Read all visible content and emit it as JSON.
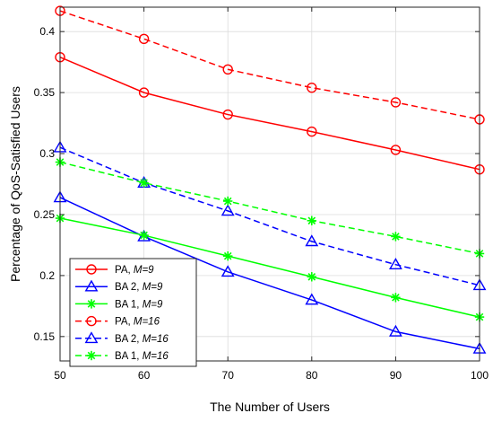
{
  "chart_data": {
    "type": "line",
    "xlabel": "The Number of Users",
    "ylabel": "Percentage of QoS-Satisfied Users",
    "x": [
      50,
      60,
      70,
      80,
      90,
      100
    ],
    "xlim": [
      50,
      100
    ],
    "ylim": [
      0.13,
      0.42
    ],
    "xticks": [
      50,
      60,
      70,
      80,
      90,
      100
    ],
    "yticks": [
      0.15,
      0.2,
      0.25,
      0.3,
      0.35,
      0.4
    ],
    "ytick_labels": [
      "0.15",
      "0.2",
      "0.25",
      "0.3",
      "0.35",
      "0.4"
    ],
    "grid": true,
    "legend_position": "bottom-left",
    "series": [
      {
        "name": "PA,",
        "param": "M=9",
        "color": "#ff0000",
        "marker": "circle",
        "dashed": false,
        "values": [
          0.379,
          0.35,
          0.332,
          0.318,
          0.303,
          0.287
        ]
      },
      {
        "name": "BA 2,",
        "param": "M=9",
        "color": "#0000ff",
        "marker": "triangle",
        "dashed": false,
        "values": [
          0.264,
          0.232,
          0.203,
          0.18,
          0.154,
          0.14
        ]
      },
      {
        "name": "BA 1,",
        "param": "M=9",
        "color": "#00ff00",
        "marker": "asterisk",
        "dashed": false,
        "values": [
          0.247,
          0.233,
          0.216,
          0.199,
          0.182,
          0.166
        ]
      },
      {
        "name": "PA,",
        "param": "M=16",
        "color": "#ff0000",
        "marker": "circle",
        "dashed": true,
        "values": [
          0.417,
          0.394,
          0.369,
          0.354,
          0.342,
          0.328
        ]
      },
      {
        "name": "BA 2,",
        "param": "M=16",
        "color": "#0000ff",
        "marker": "triangle",
        "dashed": true,
        "values": [
          0.305,
          0.276,
          0.253,
          0.228,
          0.209,
          0.192
        ]
      },
      {
        "name": "BA 1,",
        "param": "M=16",
        "color": "#00ff00",
        "marker": "asterisk",
        "dashed": true,
        "values": [
          0.293,
          0.276,
          0.261,
          0.245,
          0.232,
          0.218
        ]
      }
    ]
  }
}
